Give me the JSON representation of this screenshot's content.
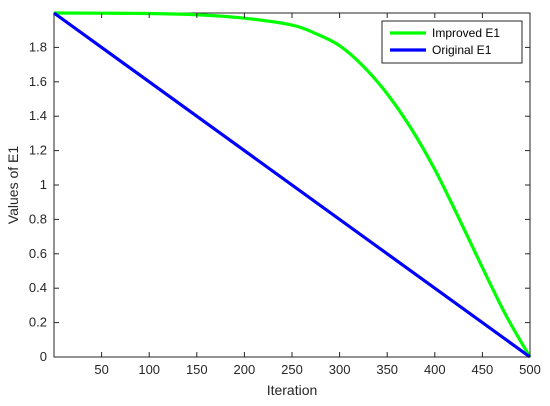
{
  "chart_data": {
    "type": "line",
    "xlabel": "Iteration",
    "ylabel": "Values of E1",
    "xlim": [
      0,
      500
    ],
    "ylim": [
      0,
      2
    ],
    "xticks": [
      50,
      100,
      150,
      200,
      250,
      300,
      350,
      400,
      450,
      500
    ],
    "yticks": [
      0,
      0.2,
      0.4,
      0.6,
      0.8,
      1,
      1.2,
      1.4,
      1.6,
      1.8
    ],
    "ytick_labels": [
      "0",
      "0.2",
      "0.4",
      "0.6",
      "0.8",
      "1",
      "1.2",
      "1.4",
      "1.6",
      "1.8"
    ],
    "grid": false,
    "legend_position": "top-right",
    "series": [
      {
        "name": "Improved E1",
        "color": "#00ff00",
        "x": [
          0,
          50,
          100,
          150,
          200,
          250,
          275,
          300,
          325,
          350,
          375,
          400,
          425,
          450,
          475,
          500
        ],
        "y": [
          2.0,
          1.999,
          1.997,
          1.99,
          1.97,
          1.93,
          1.88,
          1.81,
          1.69,
          1.53,
          1.33,
          1.09,
          0.81,
          0.52,
          0.24,
          0.0
        ]
      },
      {
        "name": "Original E1",
        "color": "#0000ff",
        "x": [
          0,
          500
        ],
        "y": [
          2.0,
          0.0
        ]
      }
    ]
  }
}
